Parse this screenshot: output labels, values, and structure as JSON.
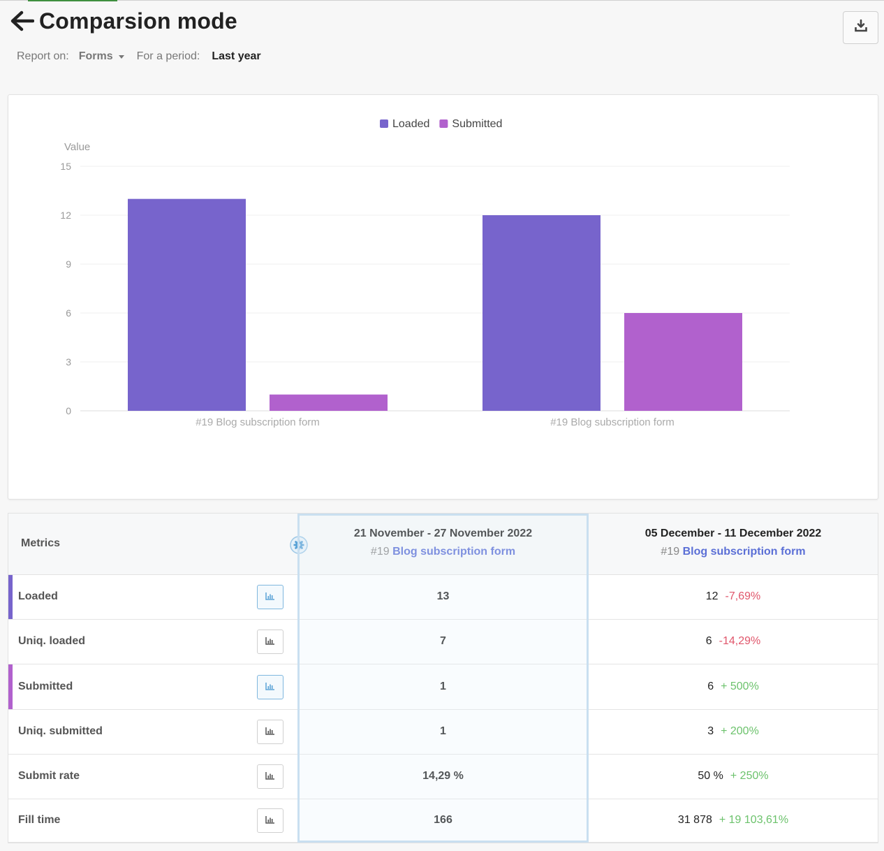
{
  "header": {
    "title": "Comparsion mode"
  },
  "filters": {
    "report_label": "Report on:",
    "report_value": "Forms",
    "period_label": "For a period:",
    "period_value": "Last year"
  },
  "chart_data": {
    "type": "bar",
    "ylabel": "Value",
    "ylim": [
      0,
      15
    ],
    "yticks": [
      0,
      3,
      6,
      9,
      12,
      15
    ],
    "categories": [
      "#19 Blog subscription form",
      "#19 Blog subscription form"
    ],
    "series": [
      {
        "name": "Loaded",
        "color": "#7764cc",
        "values": [
          13,
          12
        ]
      },
      {
        "name": "Submitted",
        "color": "#b161cd",
        "values": [
          1,
          6
        ]
      }
    ],
    "legend": "top-center",
    "grid": true
  },
  "table": {
    "metrics_header": "Metrics",
    "periods": [
      {
        "date": "21 November - 27 November 2022",
        "form_id": "#19",
        "form_name": "Blog subscription form"
      },
      {
        "date": "05 December - 11 December 2022",
        "form_id": "#19",
        "form_name": "Blog subscription form"
      }
    ],
    "rows": [
      {
        "label": "Loaded",
        "bar_color": "#7764cc",
        "active": true,
        "v1": "13",
        "v2": "12",
        "delta": "-7,69%",
        "delta_type": "neg"
      },
      {
        "label": "Uniq. loaded",
        "bar_color": "",
        "active": false,
        "v1": "7",
        "v2": "6",
        "delta": "-14,29%",
        "delta_type": "neg"
      },
      {
        "label": "Submitted",
        "bar_color": "#b161cd",
        "active": true,
        "v1": "1",
        "v2": "6",
        "delta": "+ 500%",
        "delta_type": "pos"
      },
      {
        "label": "Uniq. submitted",
        "bar_color": "",
        "active": false,
        "v1": "1",
        "v2": "3",
        "delta": "+ 200%",
        "delta_type": "pos"
      },
      {
        "label": "Submit rate",
        "bar_color": "",
        "active": false,
        "v1": "14,29 %",
        "v2": "50 %",
        "delta": "+ 250%",
        "delta_type": "pos"
      },
      {
        "label": "Fill time",
        "bar_color": "",
        "active": false,
        "v1": "166",
        "v2": "31 878",
        "delta": "+ 19 103,61%",
        "delta_type": "pos"
      }
    ]
  },
  "icons": {
    "back": "arrow-left-icon",
    "export": "download-icon",
    "settings": "gear-icon",
    "chart_toggle": "bar-chart-icon"
  }
}
